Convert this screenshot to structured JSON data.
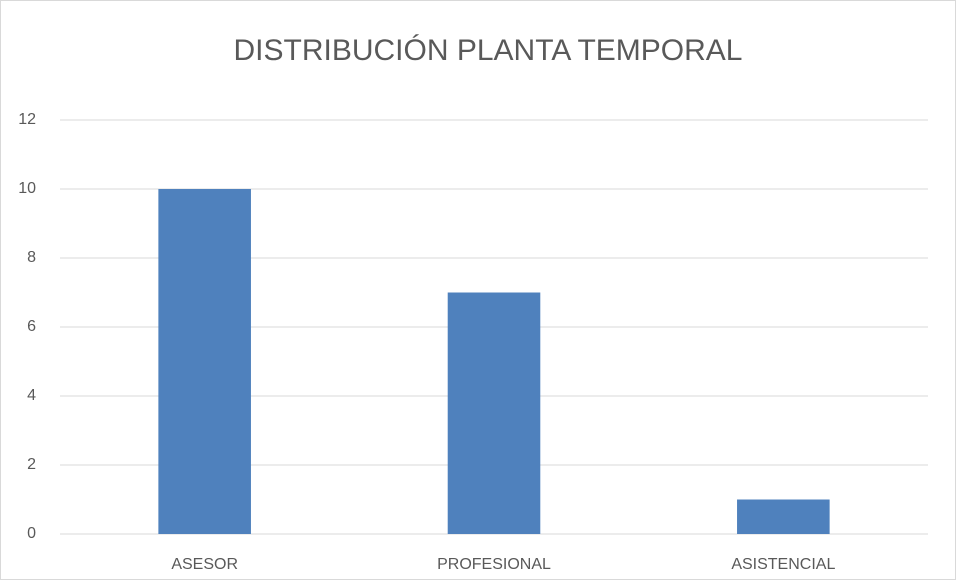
{
  "chart_data": {
    "type": "bar",
    "title": "DISTRIBUCIÓN PLANTA TEMPORAL",
    "categories": [
      "ASESOR",
      "PROFESIONAL",
      "ASISTENCIAL"
    ],
    "values": [
      10,
      7,
      1
    ],
    "color": "#4f81bd",
    "ylim": [
      0,
      12
    ],
    "yticks": [
      0,
      2,
      4,
      6,
      8,
      10,
      12
    ],
    "grid": true
  }
}
